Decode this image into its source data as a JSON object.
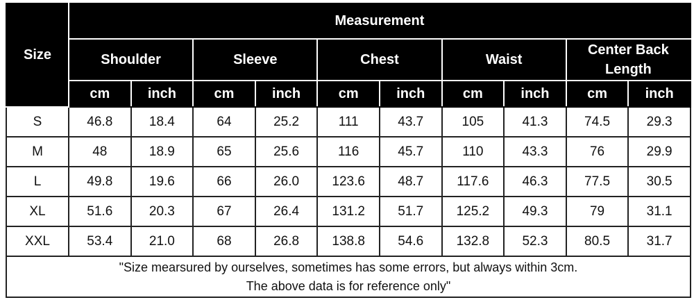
{
  "header": {
    "size_label": "Size",
    "measurement_label": "Measurement",
    "groups": [
      "Shoulder",
      "Sleeve",
      "Chest",
      "Waist",
      "Center Back Length"
    ],
    "units": [
      "cm",
      "inch"
    ]
  },
  "rows": [
    {
      "size": "S",
      "values": [
        "46.8",
        "18.4",
        "64",
        "25.2",
        "111",
        "43.7",
        "105",
        "41.3",
        "74.5",
        "29.3"
      ]
    },
    {
      "size": "M",
      "values": [
        "48",
        "18.9",
        "65",
        "25.6",
        "116",
        "45.7",
        "110",
        "43.3",
        "76",
        "29.9"
      ]
    },
    {
      "size": "L",
      "values": [
        "49.8",
        "19.6",
        "66",
        "26.0",
        "123.6",
        "48.7",
        "117.6",
        "46.3",
        "77.5",
        "30.5"
      ]
    },
    {
      "size": "XL",
      "values": [
        "51.6",
        "20.3",
        "67",
        "26.4",
        "131.2",
        "51.7",
        "125.2",
        "49.3",
        "79",
        "31.1"
      ]
    },
    {
      "size": "XXL",
      "values": [
        "53.4",
        "21.0",
        "68",
        "26.8",
        "138.8",
        "54.6",
        "132.8",
        "52.3",
        "80.5",
        "31.7"
      ]
    }
  ],
  "note": {
    "line1": "\"Size mearsured by ourselves, sometimes has some errors, but always within 3cm.",
    "line2": "The above data is for reference only\""
  }
}
